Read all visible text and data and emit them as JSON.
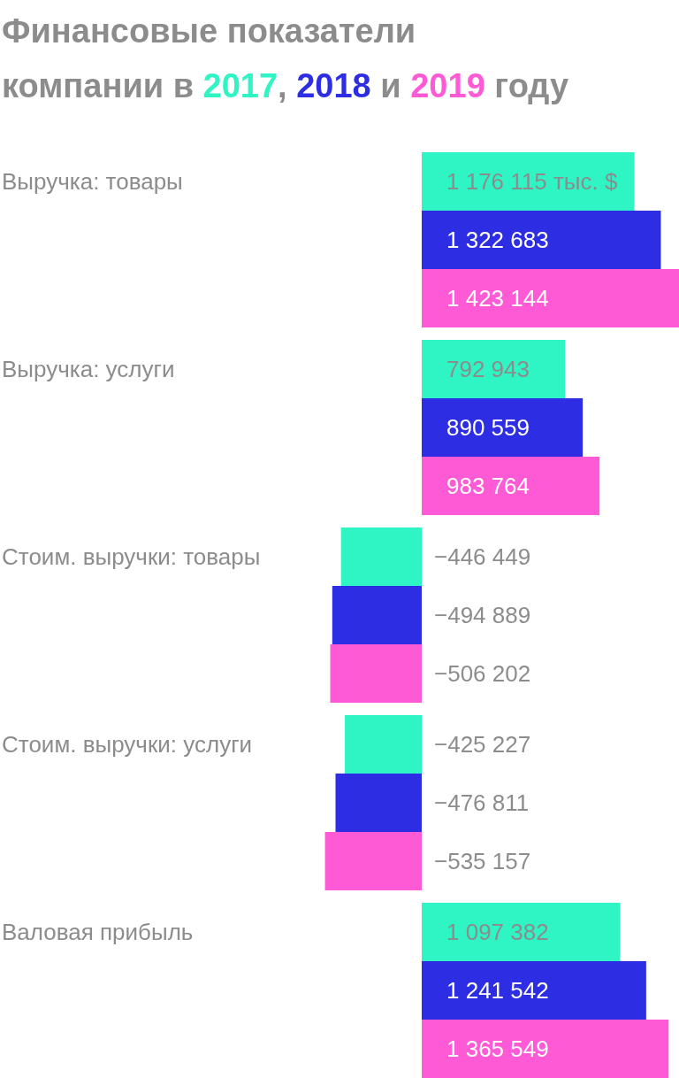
{
  "chart_data": {
    "type": "bar",
    "orientation": "horizontal",
    "title": "Финансовые показатели компании в",
    "annotations": [
      ",",
      "и",
      "году"
    ],
    "categories": [
      "Выручка: товары",
      "Выручка: услуги",
      "Стоим. выручки: товары",
      "Стоим. выручки: услуги",
      "Валовая прибыль"
    ],
    "series": [
      {
        "name": "2017",
        "color": "#2ff5c5",
        "values": [
          1176115,
          792943,
          -446449,
          -425227,
          1097382
        ],
        "value_labels": [
          "1 176 115 тыс. $",
          "792 943",
          "−446 449",
          "−425 227",
          "1 097 382"
        ]
      },
      {
        "name": "2018",
        "color": "#2d2ee3",
        "values": [
          1322683,
          890559,
          -494889,
          -476811,
          1241542
        ],
        "value_labels": [
          "1 322 683",
          "890 559",
          "−494 889",
          "−476 811",
          "1 241 542"
        ]
      },
      {
        "name": "2019",
        "color": "#ff5ad6",
        "values": [
          1423144,
          983764,
          -506202,
          -535157,
          1365549
        ],
        "value_labels": [
          "1 423 144",
          "983 764",
          "−506 202",
          "−535 157",
          "1 365 549"
        ]
      }
    ],
    "legend": false,
    "grid": false
  }
}
